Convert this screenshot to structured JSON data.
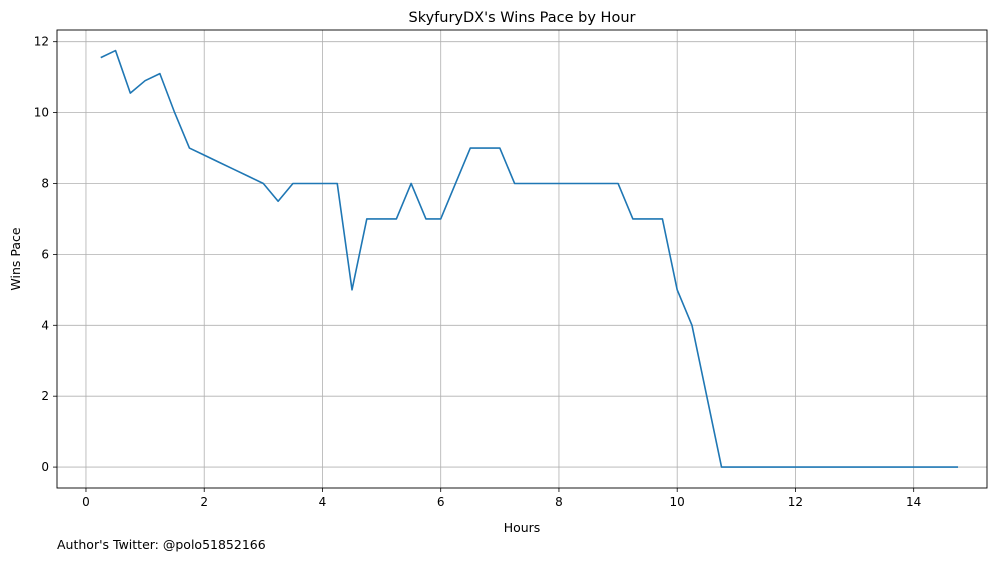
{
  "chart_data": {
    "type": "line",
    "title": "SkyfuryDX's Wins Pace by Hour",
    "xlabel": "Hours",
    "ylabel": "Wins Pace",
    "xlim": [
      -0.49,
      15.24
    ],
    "ylim": [
      -0.59,
      12.33
    ],
    "xticks": [
      0,
      2,
      4,
      6,
      8,
      10,
      12,
      14
    ],
    "yticks": [
      0,
      2,
      4,
      6,
      8,
      10,
      12
    ],
    "grid": true,
    "line_color": "#1f77b4",
    "series": [
      {
        "x": [
          0.25,
          0.5,
          0.75,
          1.0,
          1.25,
          1.5,
          1.75,
          2.0,
          2.25,
          2.5,
          2.75,
          3.0,
          3.25,
          3.5,
          3.75,
          4.0,
          4.25,
          4.5,
          4.75,
          5.0,
          5.25,
          5.5,
          5.75,
          6.0,
          6.25,
          6.5,
          6.75,
          7.0,
          7.25,
          7.5,
          7.75,
          8.0,
          8.25,
          8.5,
          8.75,
          9.0,
          9.25,
          9.5,
          9.75,
          10.0,
          10.25,
          10.5,
          10.75,
          11.0,
          11.25,
          11.5,
          11.75,
          12.0,
          12.25,
          12.5,
          12.75,
          13.0,
          13.25,
          13.5,
          13.75,
          14.0,
          14.25,
          14.5,
          14.75
        ],
        "y": [
          11.55,
          11.75,
          10.55,
          10.9,
          11.1,
          10.0,
          9.0,
          8.8,
          8.6,
          8.4,
          8.2,
          8.0,
          7.5,
          8.0,
          8.0,
          8.0,
          8.0,
          5.0,
          7.0,
          7.0,
          7.0,
          8.0,
          7.0,
          7.0,
          8.0,
          9.0,
          9.0,
          9.0,
          8.0,
          8.0,
          8.0,
          8.0,
          8.0,
          8.0,
          8.0,
          8.0,
          7.0,
          7.0,
          7.0,
          5.0,
          4.0,
          2.0,
          0.0,
          0.0,
          0.0,
          0.0,
          0.0,
          0.0,
          0.0,
          0.0,
          0.0,
          0.0,
          0.0,
          0.0,
          0.0,
          0.0,
          0.0,
          0.0,
          0.0
        ]
      }
    ]
  },
  "footnote": "Author's Twitter: @polo51852166"
}
